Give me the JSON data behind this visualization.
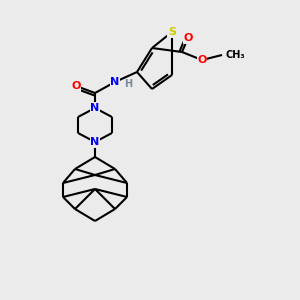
{
  "background_color": "#ebebeb",
  "atom_colors": {
    "S": "#cccc00",
    "N": "#0000ff",
    "O": "#ff0000",
    "C": "#000000",
    "H": "#778899"
  },
  "figsize": [
    3.0,
    3.0
  ],
  "dpi": 100
}
